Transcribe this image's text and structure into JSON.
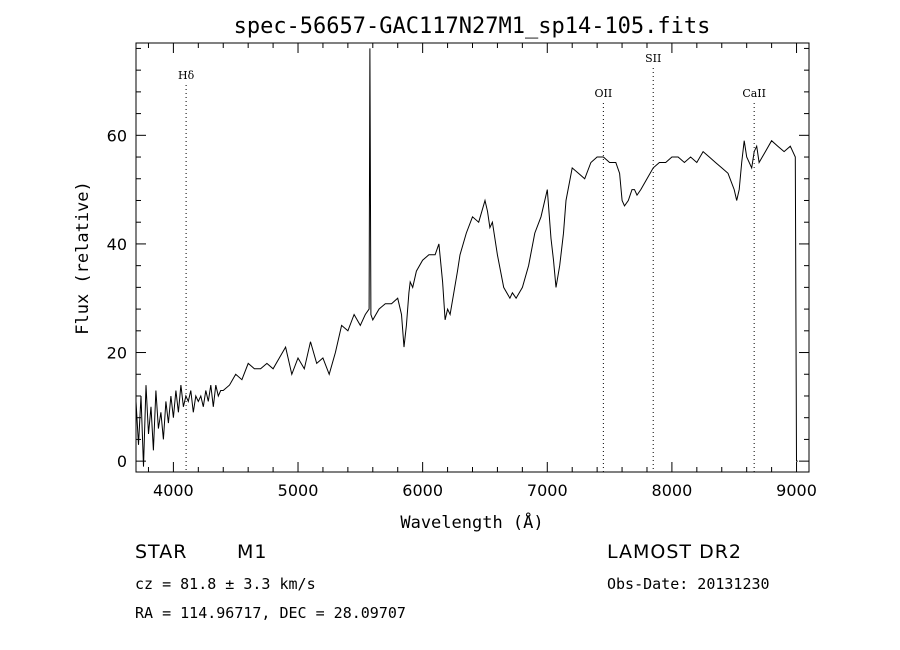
{
  "chart_data": {
    "type": "line",
    "title": "spec-56657-GAC117N27M1_sp14-105.fits",
    "xlabel": "Wavelength (Å)",
    "ylabel": "Flux (relative)",
    "xlim": [
      3700,
      9100
    ],
    "ylim": [
      -2,
      77
    ],
    "xticks": [
      4000,
      5000,
      6000,
      7000,
      8000,
      9000
    ],
    "yticks": [
      0,
      20,
      40,
      60
    ],
    "grid": false,
    "lines": [
      {
        "label": "Hδ",
        "x": 4102
      },
      {
        "label": "OII",
        "x": 7450
      },
      {
        "label": "SII",
        "x": 7850
      },
      {
        "label": "CaII",
        "x": 8660
      }
    ],
    "series": [
      {
        "x": [
          3700,
          3720,
          3740,
          3760,
          3780,
          3800,
          3820,
          3840,
          3860,
          3880,
          3900,
          3920,
          3940,
          3960,
          3980,
          4000,
          4020,
          4040,
          4060,
          4080,
          4100,
          4120,
          4140,
          4160,
          4180,
          4200,
          4220,
          4240,
          4260,
          4280,
          4300,
          4320,
          4340,
          4360,
          4380,
          4400,
          4450,
          4500,
          4550,
          4600,
          4650,
          4700,
          4750,
          4800,
          4850,
          4900,
          4950,
          5000,
          5050,
          5100,
          5150,
          5200,
          5250,
          5300,
          5350,
          5400,
          5450,
          5500,
          5540,
          5570,
          5577,
          5585,
          5600,
          5650,
          5700,
          5750,
          5800,
          5830,
          5850,
          5870,
          5890,
          5900,
          5920,
          5950,
          6000,
          6050,
          6100,
          6130,
          6160,
          6180,
          6200,
          6220,
          6250,
          6280,
          6300,
          6350,
          6400,
          6450,
          6500,
          6520,
          6540,
          6560,
          6600,
          6650,
          6700,
          6720,
          6750,
          6800,
          6850,
          6900,
          6950,
          7000,
          7030,
          7050,
          7070,
          7100,
          7130,
          7150,
          7200,
          7250,
          7300,
          7350,
          7400,
          7450,
          7500,
          7550,
          7580,
          7600,
          7620,
          7650,
          7680,
          7700,
          7720,
          7750,
          7800,
          7850,
          7900,
          7950,
          8000,
          8050,
          8100,
          8150,
          8200,
          8250,
          8300,
          8350,
          8400,
          8450,
          8500,
          8520,
          8540,
          8560,
          8580,
          8600,
          8640,
          8660,
          8680,
          8700,
          8750,
          8800,
          8850,
          8900,
          8950,
          8990,
          9000,
          9010
        ],
        "y": [
          11,
          3,
          12,
          -1,
          14,
          5,
          10,
          2,
          13,
          6,
          9,
          4,
          11,
          7,
          12,
          8,
          13,
          9,
          14,
          10,
          12,
          11,
          13,
          9,
          12,
          11,
          12,
          10,
          13,
          11,
          14,
          10,
          14,
          12,
          13,
          13,
          14,
          16,
          15,
          18,
          17,
          17,
          18,
          17,
          19,
          21,
          16,
          19,
          17,
          22,
          18,
          19,
          16,
          20,
          25,
          24,
          27,
          25,
          27,
          28,
          76,
          27,
          26,
          28,
          29,
          29,
          30,
          27,
          21,
          25,
          31,
          33,
          32,
          35,
          37,
          38,
          38,
          40,
          33,
          26,
          28,
          27,
          31,
          35,
          38,
          42,
          45,
          44,
          48,
          46,
          43,
          44,
          38,
          32,
          30,
          31,
          30,
          32,
          36,
          42,
          45,
          50,
          41,
          37,
          32,
          36,
          42,
          48,
          54,
          53,
          52,
          55,
          56,
          56,
          55,
          55,
          53,
          48,
          47,
          48,
          50,
          50,
          49,
          50,
          52,
          54,
          55,
          55,
          56,
          56,
          55,
          56,
          55,
          57,
          56,
          55,
          54,
          53,
          50,
          48,
          50,
          55,
          59,
          56,
          54,
          57,
          58,
          55,
          57,
          59,
          58,
          57,
          58,
          56,
          0,
          0
        ]
      }
    ]
  },
  "info": {
    "obj_class": "STAR",
    "subclass": "M1",
    "survey": "LAMOST DR2",
    "cz": "cz = 81.8 ± 3.3 km/s",
    "obsdate": "Obs-Date: 20131230",
    "radec": "RA = 114.96717, DEC =  28.09707"
  }
}
